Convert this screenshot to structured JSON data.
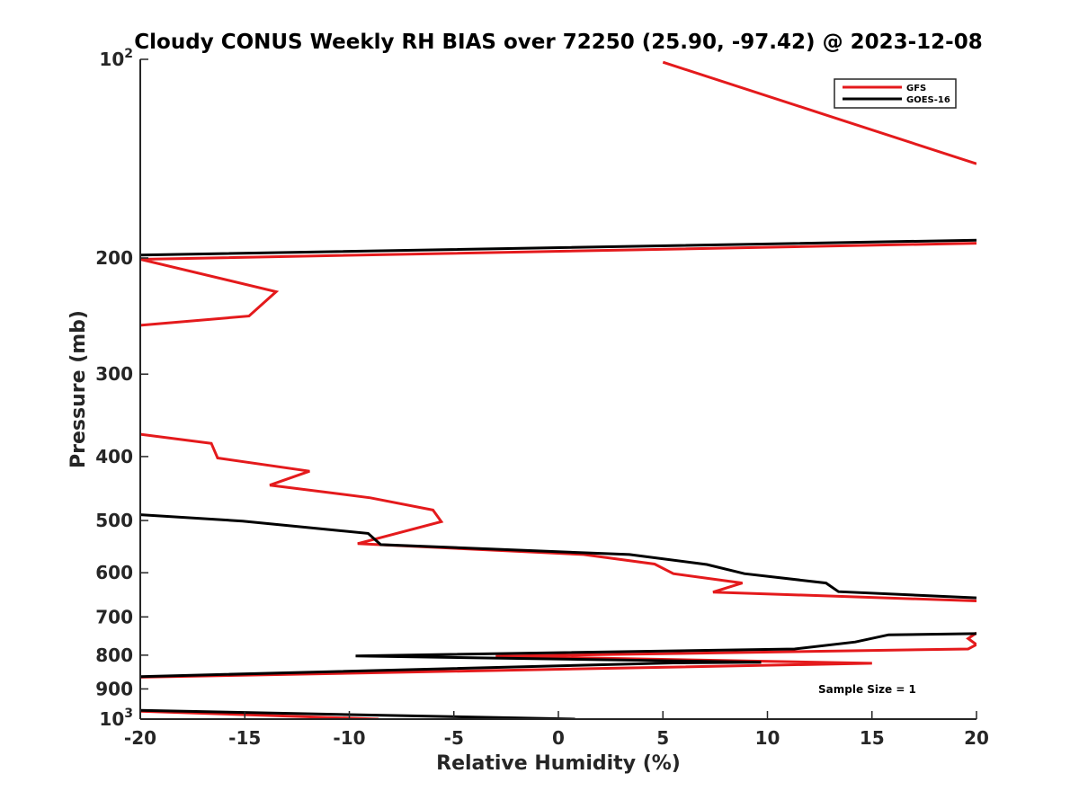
{
  "chart_data": {
    "type": "line",
    "title": "Cloudy CONUS Weekly RH BIAS over 72250 (25.90, -97.42) @ 2023-12-08",
    "xlabel": "Relative Humidity (%)",
    "ylabel": "Pressure (mb)",
    "xlim": [
      -20,
      20
    ],
    "ylim": [
      100,
      1000
    ],
    "y_scale": "log",
    "y_reversed": true,
    "x_ticks": [
      "-20",
      "-15",
      "-10",
      "-5",
      "0",
      "5",
      "10",
      "15",
      "20"
    ],
    "y_ticks": [
      {
        "value": 100,
        "base": "10",
        "exp": "2"
      },
      {
        "value": 200,
        "label": "200"
      },
      {
        "value": 300,
        "label": "300"
      },
      {
        "value": 400,
        "label": "400"
      },
      {
        "value": 500,
        "label": "500"
      },
      {
        "value": 600,
        "label": "600"
      },
      {
        "value": 700,
        "label": "700"
      },
      {
        "value": 800,
        "label": "800"
      },
      {
        "value": 900,
        "label": "900"
      },
      {
        "value": 1000,
        "base": "10",
        "exp": "3"
      }
    ],
    "grid": false,
    "legend_position": "top-right",
    "annotation": "Sample Size = 1",
    "series": [
      {
        "name": "GFS",
        "color": "#e41a1c",
        "points": [
          [
            -8.6,
            1000
          ],
          [
            -20,
            973
          ],
          [
            null,
            null
          ],
          [
            20,
            740
          ],
          [
            19.6,
            755
          ],
          [
            20,
            771
          ],
          [
            19.6,
            783
          ],
          [
            -3,
            803
          ],
          [
            15,
            823
          ],
          [
            -20,
            864
          ],
          [
            null,
            null
          ],
          [
            20,
            662
          ],
          [
            7.4,
            642
          ],
          [
            8.8,
            622
          ],
          [
            5.5,
            602
          ],
          [
            4.6,
            582
          ],
          [
            1.2,
            563
          ],
          [
            -9.6,
            542
          ],
          [
            -5.6,
            502
          ],
          [
            -6,
            482
          ],
          [
            -9,
            462
          ],
          [
            -13.8,
            442
          ],
          [
            -11.9,
            421
          ],
          [
            -16.3,
            402
          ],
          [
            -16.6,
            382
          ],
          [
            -20,
            370
          ],
          [
            null,
            null
          ],
          [
            -20,
            253
          ],
          [
            -14.8,
            245
          ],
          [
            -13.5,
            225
          ],
          [
            -20,
            201
          ],
          [
            20,
            190
          ],
          [
            null,
            null
          ],
          [
            20,
            144
          ],
          [
            5,
            101
          ]
        ]
      },
      {
        "name": "GOES-16",
        "color": "#000000",
        "points": [
          [
            0.8,
            1000
          ],
          [
            -20,
            970
          ],
          [
            null,
            null
          ],
          [
            -20,
            862
          ],
          [
            5.5,
            822
          ],
          [
            9.7,
            820
          ],
          [
            -9.7,
            802
          ],
          [
            11.3,
            783
          ],
          [
            14.2,
            764
          ],
          [
            15.8,
            745
          ],
          [
            20,
            742
          ],
          [
            null,
            null
          ],
          [
            20,
            655
          ],
          [
            13.4,
            641
          ],
          [
            12.8,
            622
          ],
          [
            8.9,
            602
          ],
          [
            7.1,
            583
          ],
          [
            3.4,
            563
          ],
          [
            -8.5,
            544
          ],
          [
            -9.1,
            523
          ],
          [
            -15.1,
            501
          ],
          [
            -20,
            490
          ],
          [
            null,
            null
          ],
          [
            -20,
            198
          ],
          [
            20,
            188
          ]
        ]
      }
    ]
  }
}
